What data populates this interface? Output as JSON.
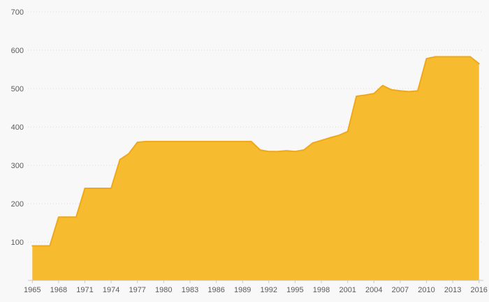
{
  "chart_style": {
    "background": "#f8f8f8",
    "area_fill": "#f7bb2f",
    "line_color": "#efa81a",
    "grid_color": "#d9d9d9",
    "axis_color": "#c9c9c9",
    "tick_label_color": "#5b5b5b"
  },
  "chart_data": {
    "type": "area",
    "title": "",
    "xlabel": "",
    "ylabel": "",
    "ylim": [
      0,
      700
    ],
    "ytick_interval": 100,
    "grid": true,
    "legend": false,
    "x": [
      1965,
      1966,
      1967,
      1968,
      1969,
      1970,
      1971,
      1972,
      1973,
      1974,
      1975,
      1976,
      1977,
      1978,
      1979,
      1980,
      1981,
      1982,
      1983,
      1984,
      1985,
      1986,
      1987,
      1988,
      1989,
      1990,
      1991,
      1992,
      1993,
      1994,
      1995,
      1996,
      1997,
      1998,
      1999,
      2000,
      2001,
      2002,
      2003,
      2004,
      2005,
      2006,
      2007,
      2008,
      2009,
      2010,
      2011,
      2012,
      2013,
      2014,
      2015,
      2016
    ],
    "values": [
      90,
      90,
      90,
      165,
      165,
      165,
      240,
      240,
      240,
      240,
      315,
      330,
      360,
      362,
      362,
      362,
      362,
      362,
      362,
      362,
      362,
      362,
      362,
      362,
      362,
      362,
      340,
      336,
      336,
      338,
      336,
      340,
      358,
      365,
      372,
      378,
      388,
      480,
      483,
      487,
      508,
      497,
      494,
      492,
      494,
      578,
      583,
      583,
      583,
      583,
      583,
      565
    ],
    "xtick_labels": [
      "1965",
      "1968",
      "1971",
      "1974",
      "1977",
      "1980",
      "1983",
      "1986",
      "1989",
      "1992",
      "1995",
      "1998",
      "2001",
      "2004",
      "2007",
      "2010",
      "2013",
      "2016"
    ],
    "ytick_labels": [
      "100",
      "200",
      "300",
      "400",
      "500",
      "600",
      "700"
    ]
  }
}
